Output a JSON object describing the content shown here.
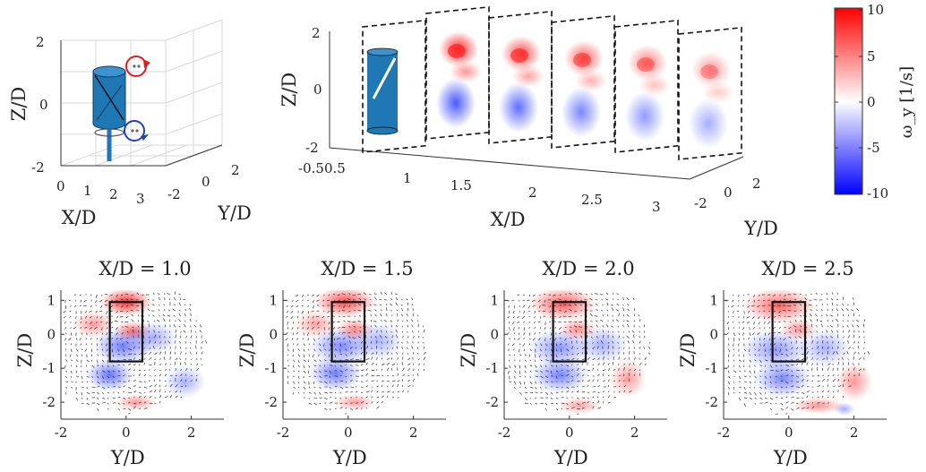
{
  "colorbar": {
    "label": "ω_y [1/s]",
    "ticks": [
      "10",
      "5",
      "0",
      "-5",
      "-10"
    ],
    "min": -10,
    "max": 10,
    "colors": {
      "positive": "#ff0000",
      "zero": "#ffffff",
      "negative": "#0000ff"
    }
  },
  "chart_data": [
    {
      "id": "setup-3d",
      "type": "diagram-3d",
      "xlabel": "X/D",
      "ylabel": "Y/D",
      "zlabel": "Z/D",
      "x_ticks": [
        "0",
        "1",
        "2",
        "3"
      ],
      "y_ticks": [
        "-2",
        "0",
        "2"
      ],
      "z_ticks": [
        "2",
        "0",
        "-2"
      ],
      "xlim": [
        0,
        3
      ],
      "ylim": [
        -2,
        2
      ],
      "zlim": [
        -2,
        2
      ],
      "grid": true,
      "rotor": {
        "shape": "cylinder",
        "color": "#1f77b4"
      },
      "vortices": [
        {
          "sign": "positive",
          "color": "#e41a1c",
          "z": 1.2
        },
        {
          "sign": "negative",
          "color": "#1f3fbf",
          "z": -0.8
        }
      ]
    },
    {
      "id": "slices-3d",
      "type": "heatmap-3d",
      "xlabel": "X/D",
      "ylabel": "Y/D",
      "zlabel": "Z/D",
      "x_ticks": [
        "-0.5",
        "0.5",
        "1",
        "1.5",
        "2",
        "2.5",
        "3"
      ],
      "y_ticks": [
        "-2",
        "0",
        "2"
      ],
      "z_ticks": [
        "2",
        "0",
        "-2"
      ],
      "slice_positions": [
        0.5,
        1.0,
        1.5,
        2.0,
        2.5,
        3.0
      ],
      "description_values": "vorticity slices, red top, blue bottom decaying downstream"
    },
    {
      "id": "slice-1.0",
      "type": "heatmap",
      "title": "X/D = 1.0",
      "xlabel": "Y/D",
      "ylabel": "Z/D",
      "x_ticks": [
        "-2",
        "0",
        "2"
      ],
      "y_ticks": [
        "1",
        "0",
        "-1",
        "-2"
      ],
      "xlim": [
        -2,
        3
      ],
      "ylim": [
        -2.5,
        1.3
      ],
      "rect": {
        "y0": -0.5,
        "y1": 0.5,
        "z0": -0.8,
        "z1": 0.95
      },
      "blobs": [
        {
          "y": 0.0,
          "z": 0.95,
          "v": 10,
          "sy": 0.5,
          "sz": 0.25
        },
        {
          "y": -0.1,
          "z": -0.35,
          "v": -6,
          "sy": 0.55,
          "sz": 0.35
        },
        {
          "y": -0.5,
          "z": -1.2,
          "v": -7,
          "sy": 0.45,
          "sz": 0.3
        },
        {
          "y": 0.2,
          "z": 0.1,
          "v": 5,
          "sy": 0.35,
          "sz": 0.18
        },
        {
          "y": 0.8,
          "z": -0.1,
          "v": -2,
          "sy": 0.5,
          "sz": 0.3
        },
        {
          "y": -1.0,
          "z": 0.3,
          "v": 2,
          "sy": 0.4,
          "sz": 0.25
        },
        {
          "y": 0.3,
          "z": -2.0,
          "v": 2,
          "sy": 0.4,
          "sz": 0.15
        },
        {
          "y": 1.8,
          "z": -1.4,
          "v": -1.5,
          "sy": 0.4,
          "sz": 0.3
        }
      ]
    },
    {
      "id": "slice-1.5",
      "type": "heatmap",
      "title": "X/D = 1.5",
      "xlabel": "Y/D",
      "ylabel": "Z/D",
      "x_ticks": [
        "-2",
        "0",
        "2"
      ],
      "y_ticks": [
        "1",
        "0",
        "-1",
        "-2"
      ],
      "xlim": [
        -2,
        3
      ],
      "ylim": [
        -2.5,
        1.3
      ],
      "rect": {
        "y0": -0.5,
        "y1": 0.5,
        "z0": -0.8,
        "z1": 0.95
      },
      "blobs": [
        {
          "y": -0.1,
          "z": 0.95,
          "v": 8,
          "sy": 0.6,
          "sz": 0.28
        },
        {
          "y": -0.2,
          "z": -0.35,
          "v": -5,
          "sy": 0.6,
          "sz": 0.35
        },
        {
          "y": -0.4,
          "z": -1.15,
          "v": -6,
          "sy": 0.5,
          "sz": 0.33
        },
        {
          "y": 0.2,
          "z": 0.15,
          "v": 3.5,
          "sy": 0.35,
          "sz": 0.2
        },
        {
          "y": 0.9,
          "z": -0.2,
          "v": -1.5,
          "sy": 0.5,
          "sz": 0.35
        },
        {
          "y": -1.0,
          "z": 0.3,
          "v": 1.5,
          "sy": 0.4,
          "sz": 0.25
        },
        {
          "y": 0.2,
          "z": -2.0,
          "v": 1.8,
          "sy": 0.4,
          "sz": 0.15
        }
      ]
    },
    {
      "id": "slice-2.0",
      "type": "heatmap",
      "title": "X/D = 2.0",
      "xlabel": "Y/D",
      "ylabel": "Z/D",
      "x_ticks": [
        "-2",
        "0",
        "2"
      ],
      "y_ticks": [
        "1",
        "0",
        "-1",
        "-2"
      ],
      "xlim": [
        -2,
        3
      ],
      "ylim": [
        -2.5,
        1.3
      ],
      "rect": {
        "y0": -0.5,
        "y1": 0.5,
        "z0": -0.8,
        "z1": 0.95
      },
      "blobs": [
        {
          "y": -0.2,
          "z": 0.9,
          "v": 7,
          "sy": 0.65,
          "sz": 0.3
        },
        {
          "y": -0.3,
          "z": -0.4,
          "v": -4,
          "sy": 0.6,
          "sz": 0.35
        },
        {
          "y": -0.3,
          "z": -1.2,
          "v": -5.5,
          "sy": 0.55,
          "sz": 0.33
        },
        {
          "y": 0.25,
          "z": 0.15,
          "v": 3,
          "sy": 0.35,
          "sz": 0.2
        },
        {
          "y": 1.0,
          "z": -0.3,
          "v": -1.5,
          "sy": 0.5,
          "sz": 0.35
        },
        {
          "y": 1.8,
          "z": -1.3,
          "v": 2,
          "sy": 0.35,
          "sz": 0.35
        },
        {
          "y": 0.3,
          "z": -2.1,
          "v": 1.5,
          "sy": 0.4,
          "sz": 0.15
        }
      ]
    },
    {
      "id": "slice-2.5",
      "type": "heatmap",
      "title": "X/D = 2.5",
      "xlabel": "Y/D",
      "ylabel": "Z/D",
      "x_ticks": [
        "-2",
        "0",
        "2"
      ],
      "y_ticks": [
        "1",
        "0",
        "-1",
        "-2"
      ],
      "xlim": [
        -2,
        3
      ],
      "ylim": [
        -2.5,
        1.3
      ],
      "rect": {
        "y0": -0.5,
        "y1": 0.5,
        "z0": -0.8,
        "z1": 0.95
      },
      "blobs": [
        {
          "y": -0.3,
          "z": 0.85,
          "v": 6,
          "sy": 0.7,
          "sz": 0.32
        },
        {
          "y": -0.4,
          "z": -0.45,
          "v": -3.5,
          "sy": 0.65,
          "sz": 0.38
        },
        {
          "y": -0.2,
          "z": -1.3,
          "v": -5,
          "sy": 0.55,
          "sz": 0.35
        },
        {
          "y": 0.3,
          "z": 0.15,
          "v": 2.5,
          "sy": 0.35,
          "sz": 0.2
        },
        {
          "y": 1.1,
          "z": -0.4,
          "v": -1.5,
          "sy": 0.5,
          "sz": 0.35
        },
        {
          "y": 2.0,
          "z": -1.4,
          "v": 2.5,
          "sy": 0.35,
          "sz": 0.35
        },
        {
          "y": 0.9,
          "z": -2.1,
          "v": 2.5,
          "sy": 0.5,
          "sz": 0.15
        },
        {
          "y": 1.7,
          "z": -2.2,
          "v": -2,
          "sy": 0.2,
          "sz": 0.12
        }
      ]
    }
  ]
}
